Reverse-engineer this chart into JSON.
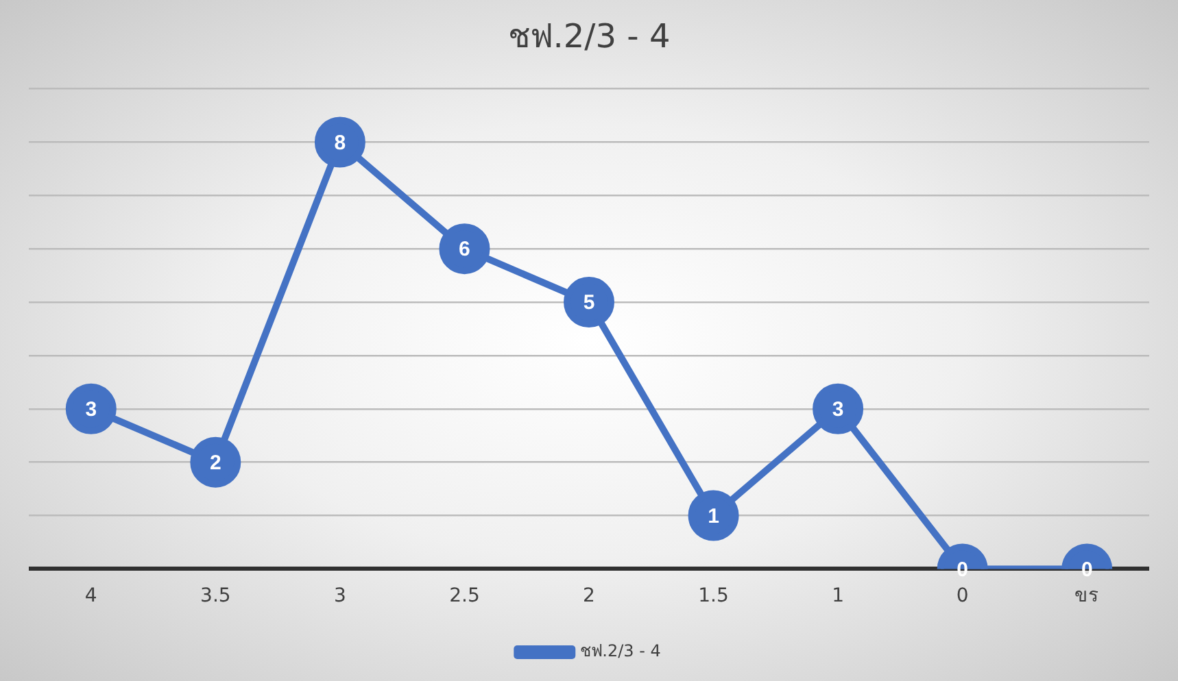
{
  "chart_data": {
    "type": "line",
    "title": "ชฟ.2/3 - 4",
    "categories": [
      "4",
      "3.5",
      "3",
      "2.5",
      "2",
      "1.5",
      "1",
      "0",
      "ขร"
    ],
    "series": [
      {
        "name": "ชฟ.2/3 - 4",
        "color": "#4472c4",
        "values": [
          3,
          2,
          8,
          6,
          5,
          1,
          3,
          0,
          0
        ]
      }
    ],
    "ylim": [
      0,
      9
    ],
    "yticks": [
      {
        "value": 0,
        "label": null
      },
      {
        "value": 1,
        "label": null
      },
      {
        "value": 2,
        "label": null
      },
      {
        "value": 3,
        "label": null
      },
      {
        "value": 4,
        "label": null
      },
      {
        "value": 5,
        "label": null
      },
      {
        "value": 6,
        "label": null
      },
      {
        "value": 7,
        "label": null
      },
      {
        "value": 8,
        "label": null
      },
      {
        "value": 9,
        "label": null
      }
    ],
    "tick_labels": "x",
    "grid": "y",
    "legend": "bottom",
    "marker": "circle",
    "line_style": "solid",
    "data_labels": true
  }
}
